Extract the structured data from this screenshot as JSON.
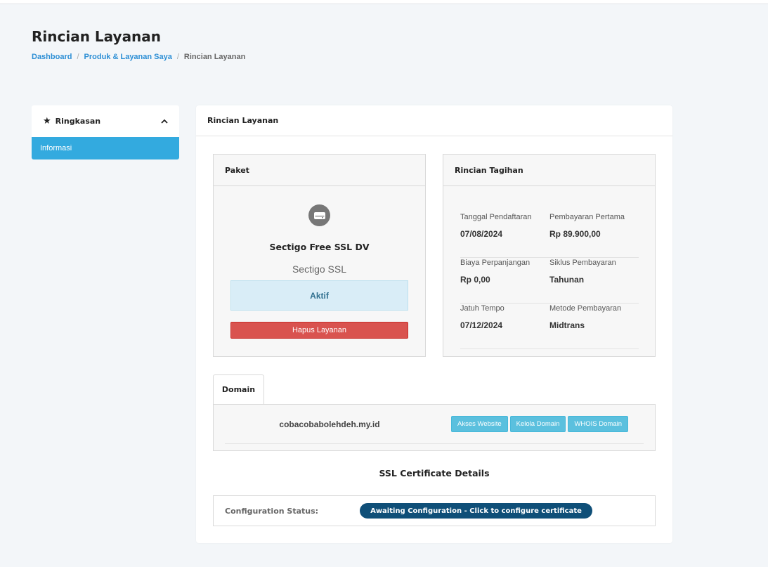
{
  "page": {
    "title": "Rincian Layanan"
  },
  "breadcrumb": {
    "items": [
      "Dashboard",
      "Produk & Layanan Saya"
    ],
    "current": "Rincian Layanan"
  },
  "sidebar": {
    "header_icon": "star-icon",
    "header_label": "Ringkasan",
    "toggle_icon": "chevron-up-icon",
    "items": [
      {
        "label": "Informasi",
        "active": true
      }
    ]
  },
  "main": {
    "title": "Rincian Layanan",
    "package": {
      "header": "Paket",
      "icon": "server-icon",
      "name": "Sectigo Free SSL DV",
      "group": "Sectigo SSL",
      "status": "Aktif",
      "cancel_label": "Hapus Layanan"
    },
    "billing": {
      "header": "Rincian Tagihan",
      "rows": [
        [
          {
            "label": "Tanggal Pendaftaran",
            "value": "07/08/2024"
          },
          {
            "label": "Pembayaran Pertama",
            "value": "Rp 89.900,00"
          }
        ],
        [
          {
            "label": "Biaya Perpanjangan",
            "value": "Rp 0,00"
          },
          {
            "label": "Siklus Pembayaran",
            "value": "Tahunan"
          }
        ],
        [
          {
            "label": "Jatuh Tempo",
            "value": "07/12/2024"
          },
          {
            "label": "Metode Pembayaran",
            "value": "Midtrans"
          }
        ]
      ]
    },
    "domain_tab": {
      "label": "Domain",
      "domain": "cobacobabolehdeh.my.id",
      "actions": [
        "Akses Website",
        "Kelola Domain",
        "WHOIS Domain"
      ]
    },
    "ssl": {
      "title": "SSL Certificate Details",
      "status_label": "Configuration Status:",
      "status_button": "Awaiting Configuration - Click to configure certificate"
    }
  },
  "colors": {
    "accent": "#33aadf",
    "link": "#2d8fd5",
    "danger": "#d9534f",
    "info_button": "#5bc0de",
    "status_bg": "#d9edf7",
    "ssl_button": "#0f4f78"
  }
}
